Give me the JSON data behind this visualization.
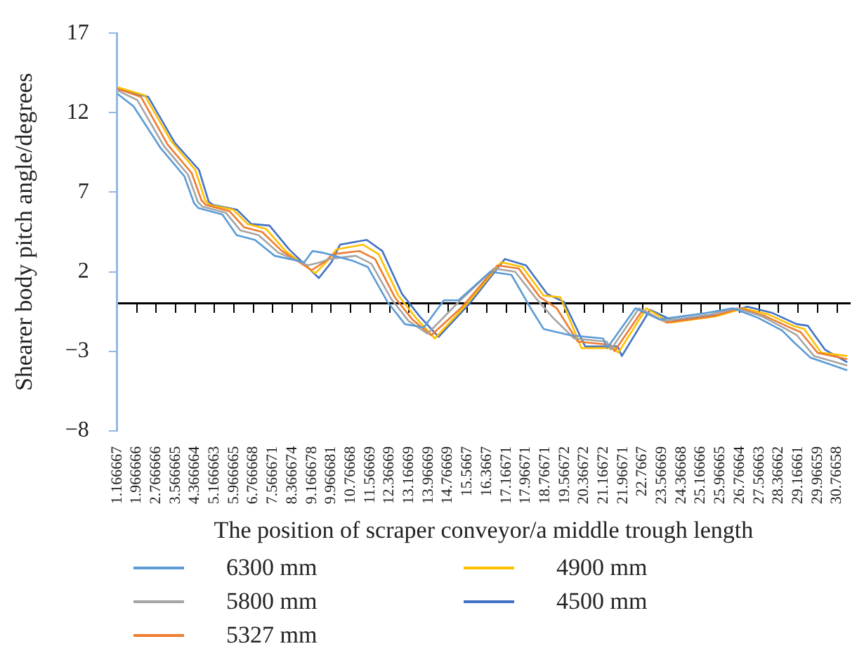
{
  "chart_data": {
    "type": "line",
    "xlabel": "The position of scraper conveyor/a middle trough length",
    "ylabel": "Shearer body pitch angle/degrees",
    "xlim": [
      1.166667,
      31.3
    ],
    "ylim": [
      -8,
      17
    ],
    "yticks": [
      -8,
      -3,
      2,
      7,
      12,
      17
    ],
    "xticks": [
      {
        "value": 1.166667,
        "label": "1.166667"
      },
      {
        "value": 1.966666,
        "label": "1.966666"
      },
      {
        "value": 2.766666,
        "label": "2.766666"
      },
      {
        "value": 3.566665,
        "label": "3.566665"
      },
      {
        "value": 4.366664,
        "label": "4.366664"
      },
      {
        "value": 5.166663,
        "label": "5.166663"
      },
      {
        "value": 5.966665,
        "label": "5.966665"
      },
      {
        "value": 6.766668,
        "label": "6.766668"
      },
      {
        "value": 7.566671,
        "label": "7.566671"
      },
      {
        "value": 8.366674,
        "label": "8.366674"
      },
      {
        "value": 9.166678,
        "label": "9.166678"
      },
      {
        "value": 9.966681,
        "label": "9.966681"
      },
      {
        "value": 10.76668,
        "label": "10.76668"
      },
      {
        "value": 11.56669,
        "label": "11.56669"
      },
      {
        "value": 12.36669,
        "label": "12.36669"
      },
      {
        "value": 13.16669,
        "label": "13.16669"
      },
      {
        "value": 13.96669,
        "label": "13.96669"
      },
      {
        "value": 14.76669,
        "label": "14.76669"
      },
      {
        "value": 15.5667,
        "label": "15.5667"
      },
      {
        "value": 16.3667,
        "label": "16.3667"
      },
      {
        "value": 17.16671,
        "label": "17.16671"
      },
      {
        "value": 17.96671,
        "label": "17.96671"
      },
      {
        "value": 18.76671,
        "label": "18.76671"
      },
      {
        "value": 19.56672,
        "label": "19.56672"
      },
      {
        "value": 20.36672,
        "label": "20.36672"
      },
      {
        "value": 21.16672,
        "label": "21.16672"
      },
      {
        "value": 21.96671,
        "label": "21.96671"
      },
      {
        "value": 22.7667,
        "label": "22.7667"
      },
      {
        "value": 23.56669,
        "label": "23.56669"
      },
      {
        "value": 24.36668,
        "label": "24.36668"
      },
      {
        "value": 25.16666,
        "label": "25.16666"
      },
      {
        "value": 25.96665,
        "label": "25.96665"
      },
      {
        "value": 26.76664,
        "label": "26.76664"
      },
      {
        "value": 27.56663,
        "label": "27.56663"
      },
      {
        "value": 28.36662,
        "label": "28.36662"
      },
      {
        "value": 29.16661,
        "label": "29.16661"
      },
      {
        "value": 29.96659,
        "label": "29.96659"
      },
      {
        "value": 30.76658,
        "label": "30.76658"
      }
    ],
    "grid": false,
    "legend": "bottom",
    "marker": "none",
    "line_style": "solid",
    "series": [
      {
        "name": "6300 mm",
        "color": "#5b9bd5",
        "x": [
          1.17,
          1.84,
          2.94,
          3.93,
          4.33,
          4.51,
          5.49,
          6.08,
          6.83,
          7.64,
          8.86,
          9.2,
          9.6,
          10.83,
          11.47,
          12.28,
          13.0,
          13.78,
          14.6,
          15.2,
          16.51,
          17.38,
          18.25,
          18.7,
          19.81,
          21.15,
          21.32,
          22.48,
          23.46,
          25.38,
          26.48,
          27.52,
          28.51,
          28.97,
          29.67,
          31.19
        ],
        "values": [
          13.2,
          12.4,
          9.8,
          8.0,
          6.3,
          6.0,
          5.6,
          4.3,
          4.0,
          3.0,
          2.6,
          3.3,
          3.2,
          2.7,
          2.3,
          0.1,
          -1.3,
          -1.5,
          0.2,
          0.2,
          2.0,
          1.8,
          -0.5,
          -1.6,
          -2.0,
          -2.2,
          -2.8,
          -0.3,
          -1.0,
          -0.6,
          -0.3,
          -0.9,
          -1.7,
          -2.4,
          -3.4,
          -4.2
        ]
      },
      {
        "name": "5800 mm",
        "color": "#a5a5a5",
        "x": [
          1.17,
          1.99,
          3.09,
          4.08,
          4.48,
          4.66,
          5.64,
          6.23,
          6.98,
          7.79,
          9.01,
          9.53,
          9.88,
          10.98,
          11.62,
          12.43,
          13.15,
          13.93,
          15.21,
          16.66,
          17.53,
          18.4,
          19.09,
          19.96,
          21.3,
          21.47,
          22.63,
          23.61,
          25.53,
          26.63,
          27.67,
          28.66,
          29.12,
          29.82,
          31.19
        ],
        "values": [
          13.4,
          12.8,
          9.9,
          8.1,
          6.4,
          6.1,
          5.7,
          4.6,
          4.3,
          3.2,
          2.4,
          2.6,
          2.8,
          3.0,
          2.5,
          0.3,
          -1.1,
          -1.9,
          0.1,
          2.2,
          2.0,
          0.3,
          -0.9,
          -2.2,
          -2.4,
          -2.9,
          -0.3,
          -1.1,
          -0.7,
          -0.3,
          -0.8,
          -1.6,
          -2.0,
          -3.3,
          -3.9
        ]
      },
      {
        "name": "5327 mm",
        "color": "#ed7d31",
        "x": [
          1.17,
          2.14,
          3.24,
          4.23,
          4.63,
          4.81,
          5.79,
          6.38,
          7.13,
          7.94,
          9.16,
          9.68,
          10.03,
          11.13,
          11.77,
          12.58,
          13.3,
          14.08,
          15.36,
          16.81,
          17.68,
          18.55,
          19.24,
          20.11,
          21.45,
          21.62,
          22.78,
          23.76,
          25.68,
          26.78,
          27.82,
          28.81,
          29.27,
          29.97,
          31.19
        ],
        "values": [
          13.5,
          13.0,
          10.0,
          8.2,
          6.5,
          6.2,
          5.8,
          4.8,
          4.5,
          3.3,
          2.1,
          2.6,
          3.1,
          3.3,
          2.8,
          0.4,
          -1.0,
          -2.0,
          -0.2,
          2.4,
          2.2,
          0.4,
          -0.3,
          -2.4,
          -2.6,
          -3.0,
          -0.4,
          -1.2,
          -0.8,
          -0.3,
          -0.8,
          -1.5,
          -1.8,
          -3.1,
          -3.5
        ]
      },
      {
        "name": "4900 mm",
        "color": "#ffc000",
        "x": [
          1.17,
          2.29,
          3.39,
          4.38,
          4.78,
          4.96,
          5.94,
          6.53,
          7.28,
          8.09,
          9.31,
          9.83,
          10.18,
          11.28,
          11.92,
          12.73,
          13.45,
          14.23,
          15.51,
          16.96,
          17.83,
          18.7,
          19.39,
          20.26,
          21.6,
          21.77,
          22.93,
          23.91,
          25.83,
          26.93,
          27.97,
          28.96,
          29.42,
          30.12,
          31.19
        ],
        "values": [
          13.6,
          13.1,
          10.2,
          8.4,
          6.5,
          6.2,
          5.9,
          5.0,
          4.7,
          3.3,
          1.9,
          2.7,
          3.4,
          3.7,
          3.1,
          0.5,
          -0.9,
          -2.2,
          -0.1,
          2.6,
          2.3,
          0.5,
          0.4,
          -2.8,
          -2.8,
          -3.1,
          -0.3,
          -1.2,
          -0.8,
          -0.3,
          -0.7,
          -1.4,
          -1.6,
          -3.1,
          -3.3
        ]
      },
      {
        "name": "4500 mm",
        "color": "#4472c4",
        "x": [
          1.17,
          2.44,
          3.54,
          4.53,
          4.93,
          5.11,
          6.09,
          6.68,
          7.43,
          8.24,
          9.46,
          9.98,
          10.33,
          11.43,
          12.07,
          12.88,
          13.6,
          14.38,
          15.66,
          17.11,
          17.98,
          18.85,
          19.54,
          20.41,
          21.75,
          21.92,
          23.08,
          24.06,
          25.98,
          27.08,
          28.12,
          29.11,
          29.57,
          30.27,
          31.19
        ],
        "values": [
          13.5,
          13.0,
          10.1,
          8.4,
          6.4,
          6.2,
          5.9,
          5.0,
          4.9,
          3.4,
          1.6,
          2.6,
          3.7,
          4.0,
          3.3,
          0.6,
          -0.8,
          -2.1,
          0.0,
          2.8,
          2.4,
          0.6,
          0.1,
          -2.7,
          -2.7,
          -3.3,
          -0.4,
          -1.1,
          -0.7,
          -0.2,
          -0.6,
          -1.3,
          -1.4,
          -2.9,
          -3.7
        ]
      }
    ]
  }
}
